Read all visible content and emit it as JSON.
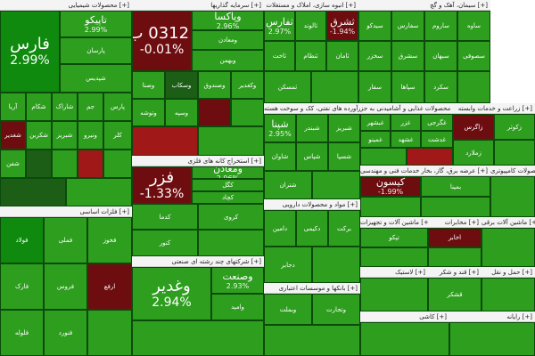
{
  "colors": {
    "strong_green": "#0f8a0f",
    "green": "#2e9e1f",
    "light_green": "#3aa52a",
    "dark_green": "#1c5e16",
    "dark_red": "#6e0d10",
    "red": "#a01818",
    "bright_red": "#d42222",
    "black": "#1a1a1a"
  },
  "sections": [
    {
      "id": "s1",
      "title": "محصولات شیمیایی [+]",
      "tiles": [
        {
          "sym": "فارس",
          "chg": "2.99%",
          "big": true,
          "c": "strong_green"
        },
        {
          "sym": "تاپیکو",
          "chg": "2.99%",
          "c": "green"
        },
        {
          "sym": "پارسان",
          "c": "green"
        },
        {
          "sym": "شپدیس",
          "c": "green"
        },
        {
          "sym": "آریا",
          "c": "green"
        },
        {
          "sym": "شکام",
          "c": "green"
        },
        {
          "sym": "شاراک",
          "c": "green"
        },
        {
          "sym": "جم",
          "c": "green"
        },
        {
          "sym": "پارس",
          "c": "green"
        },
        {
          "sym": "شغدیر",
          "c": "dark_red"
        },
        {
          "sym": "شکربن",
          "c": "green"
        },
        {
          "sym": "شبریز",
          "c": "green"
        },
        {
          "sym": "ونیرو",
          "c": "green"
        },
        {
          "sym": "کلر",
          "c": "green"
        },
        {
          "sym": "شفن",
          "c": "green"
        },
        {
          "sym": "",
          "c": "dark_green"
        },
        {
          "sym": "",
          "c": "green"
        },
        {
          "sym": "",
          "c": "red"
        },
        {
          "sym": "",
          "c": "green"
        },
        {
          "sym": "",
          "c": "dark_green"
        },
        {
          "sym": "",
          "c": "green"
        }
      ]
    },
    {
      "id": "s2",
      "title": "سرمایه گذاریها [+]",
      "tiles": [
        {
          "sym": "سك 0312 ب 01",
          "chg": "-0.01%",
          "big": true,
          "c": "dark_red"
        },
        {
          "sym": "وپاکسا",
          "chg": "2.96%",
          "c": "green"
        },
        {
          "sym": "ومعادن",
          "c": "green"
        },
        {
          "sym": "وبهمن",
          "c": "green"
        },
        {
          "sym": "وصنا",
          "c": "green"
        },
        {
          "sym": "وسکاب",
          "c": "dark_green"
        },
        {
          "sym": "وصندوق",
          "c": "green"
        },
        {
          "sym": "وکغدیر",
          "c": "green"
        },
        {
          "sym": "وتوشه",
          "c": "green"
        },
        {
          "sym": "وسپه",
          "c": "green"
        },
        {
          "sym": "",
          "c": "dark_red"
        },
        {
          "sym": "",
          "c": "green"
        },
        {
          "sym": "",
          "c": "red"
        },
        {
          "sym": "",
          "c": "green"
        }
      ]
    },
    {
      "id": "s3",
      "title": "انبوه سازی، املاک و مستغلات [+]",
      "tiles": [
        {
          "sym": "ثفارس",
          "chg": "2.97%",
          "c": "green"
        },
        {
          "sym": "ثالوند",
          "c": "green"
        },
        {
          "sym": "ثشرق",
          "chg": "-1.94%",
          "c": "dark_red"
        },
        {
          "sym": "ثاخت",
          "c": "green"
        },
        {
          "sym": "ثنظام",
          "c": "green"
        },
        {
          "sym": "ثامان",
          "c": "green"
        },
        {
          "sym": "ثمسکن",
          "c": "green"
        },
        {
          "sym": "",
          "c": "green"
        }
      ]
    },
    {
      "id": "s4",
      "title": "سیمان، آهک و گچ [+]",
      "tiles": [
        {
          "sym": "سیدکو",
          "c": "green"
        },
        {
          "sym": "سفارس",
          "c": "green"
        },
        {
          "sym": "ساروم",
          "c": "green"
        },
        {
          "sym": "ساوه",
          "c": "green"
        },
        {
          "sym": "سخزر",
          "c": "green"
        },
        {
          "sym": "سشرق",
          "c": "green"
        },
        {
          "sym": "سبهان",
          "c": "green"
        },
        {
          "sym": "سصوفی",
          "c": "green"
        },
        {
          "sym": "سفار",
          "c": "green"
        },
        {
          "sym": "سپاها",
          "c": "green"
        },
        {
          "sym": "سکرد",
          "c": "green"
        },
        {
          "sym": "",
          "c": "green"
        }
      ]
    },
    {
      "id": "s5",
      "title": "فرآورده های نفتی، کک و سوخت هسته [+]",
      "tiles": [
        {
          "sym": "شپنا",
          "chg": "2.95%",
          "c": "green"
        },
        {
          "sym": "شبندر",
          "c": "green"
        },
        {
          "sym": "شبریز",
          "c": "green"
        },
        {
          "sym": "شاوان",
          "c": "green"
        },
        {
          "sym": "شپاس",
          "c": "green"
        },
        {
          "sym": "شسپا",
          "c": "green"
        },
        {
          "sym": "شتران",
          "c": "green"
        },
        {
          "sym": "",
          "c": "green"
        }
      ]
    },
    {
      "id": "s6",
      "title": "محصولات غذایی و آشامیدنی به جز [+]",
      "tiles": [
        {
          "sym": "غبشهر",
          "c": "green"
        },
        {
          "sym": "غزر",
          "c": "green"
        },
        {
          "sym": "غگرجی",
          "c": "green"
        },
        {
          "sym": "غمینو",
          "c": "green"
        },
        {
          "sym": "غشهد",
          "c": "green"
        },
        {
          "sym": "غدشت",
          "c": "green"
        },
        {
          "sym": "",
          "c": "green"
        },
        {
          "sym": "",
          "c": "red"
        }
      ]
    },
    {
      "id": "s7",
      "title": "زراعت و خدمات وابسته [+]",
      "tiles": [
        {
          "sym": "زاگرس",
          "c": "dark_red"
        },
        {
          "sym": "زکوثر",
          "c": "green"
        },
        {
          "sym": "زملارد",
          "c": "green"
        },
        {
          "sym": "",
          "c": "green"
        }
      ]
    },
    {
      "id": "s8",
      "title": "استخراج کانه های فلزی [+]",
      "tiles": [
        {
          "sym": "فزر",
          "chg": "-1.33%",
          "big": true,
          "c": "dark_red"
        },
        {
          "sym": "ومعادن",
          "chg": "2.96%",
          "c": "green"
        },
        {
          "sym": "کگل",
          "c": "green"
        },
        {
          "sym": "کچاد",
          "c": "green"
        },
        {
          "sym": "کدما",
          "c": "green"
        },
        {
          "sym": "کروی",
          "c": "green"
        },
        {
          "sym": "کنور",
          "c": "green"
        },
        {
          "sym": "",
          "c": "green"
        }
      ]
    },
    {
      "id": "s9",
      "title": "فلزات اساسی [+]",
      "tiles": [
        {
          "sym": "فولاد",
          "c": "strong_green"
        },
        {
          "sym": "فملی",
          "c": "green"
        },
        {
          "sym": "فخوز",
          "c": "green"
        },
        {
          "sym": "فارک",
          "c": "green"
        },
        {
          "sym": "فروس",
          "c": "green"
        },
        {
          "sym": "ارفع",
          "c": "dark_red"
        },
        {
          "sym": "فلوله",
          "c": "green"
        },
        {
          "sym": "فنورد",
          "c": "green"
        },
        {
          "sym": "",
          "c": "green"
        }
      ]
    },
    {
      "id": "s10",
      "title": "شرکتهای چند رشته ای صنعتی [+]",
      "tiles": [
        {
          "sym": "وغدیر",
          "chg": "2.94%",
          "big": true,
          "c": "green"
        },
        {
          "sym": "وصنعت",
          "chg": "2.93%",
          "c": "green"
        },
        {
          "sym": "وامید",
          "c": "green"
        },
        {
          "sym": "",
          "c": "green"
        }
      ]
    },
    {
      "id": "s11",
      "title": "مواد و محصولات دارویی [+]",
      "tiles": [
        {
          "sym": "دامین",
          "c": "green"
        },
        {
          "sym": "دکیمی",
          "c": "green"
        },
        {
          "sym": "برکت",
          "c": "green"
        },
        {
          "sym": "دجابر",
          "c": "green"
        },
        {
          "sym": "",
          "c": "green"
        }
      ]
    },
    {
      "id": "s12",
      "title": "بانکها و موسسات اعتباری [+]",
      "tiles": [
        {
          "sym": "وبملت",
          "c": "green"
        },
        {
          "sym": "وتجارت",
          "c": "green"
        },
        {
          "sym": "",
          "c": "green"
        }
      ]
    },
    {
      "id": "s13",
      "title": "خدمات فنی و مهندسی [+]",
      "tiles": [
        {
          "sym": "کیسون",
          "chg": "-1.99%",
          "c": "dark_red"
        },
        {
          "sym": "",
          "c": "green"
        }
      ]
    },
    {
      "id": "s14",
      "title": "عرضه برق، گاز، بخار [+]",
      "tiles": [
        {
          "sym": "بمپنا",
          "c": "green"
        },
        {
          "sym": "",
          "c": "green"
        }
      ]
    },
    {
      "id": "s15",
      "title": "تولید محصولات کامپیوتری [+]",
      "tiles": [
        {
          "sym": "",
          "c": "green"
        }
      ]
    },
    {
      "id": "s16",
      "title": "ماشین آلات و تجهیزات [+]",
      "tiles": [
        {
          "sym": "تپکو",
          "c": "green"
        },
        {
          "sym": "",
          "c": "green"
        }
      ]
    },
    {
      "id": "s17",
      "title": "مخابرات [+]",
      "tiles": [
        {
          "sym": "اخابر",
          "c": "dark_red"
        },
        {
          "sym": "",
          "c": "green"
        }
      ]
    },
    {
      "id": "s18",
      "title": "ماشین آلات برقی [+]",
      "tiles": [
        {
          "sym": "",
          "c": "green"
        }
      ]
    },
    {
      "id": "s19",
      "title": "لاستیک [+]",
      "tiles": [
        {
          "sym": "",
          "c": "green"
        }
      ]
    },
    {
      "id": "s20",
      "title": "قند و شکر [+]",
      "tiles": [
        {
          "sym": "قشکر",
          "c": "green"
        }
      ]
    },
    {
      "id": "s21",
      "title": "حمل و نقل [+]",
      "tiles": [
        {
          "sym": "",
          "c": "green"
        }
      ]
    },
    {
      "id": "s22",
      "title": "کاشی [+]",
      "tiles": [
        {
          "sym": "",
          "c": "green"
        }
      ]
    },
    {
      "id": "s23",
      "title": "رایانه [+]",
      "tiles": [
        {
          "sym": "",
          "c": "green"
        }
      ]
    }
  ]
}
